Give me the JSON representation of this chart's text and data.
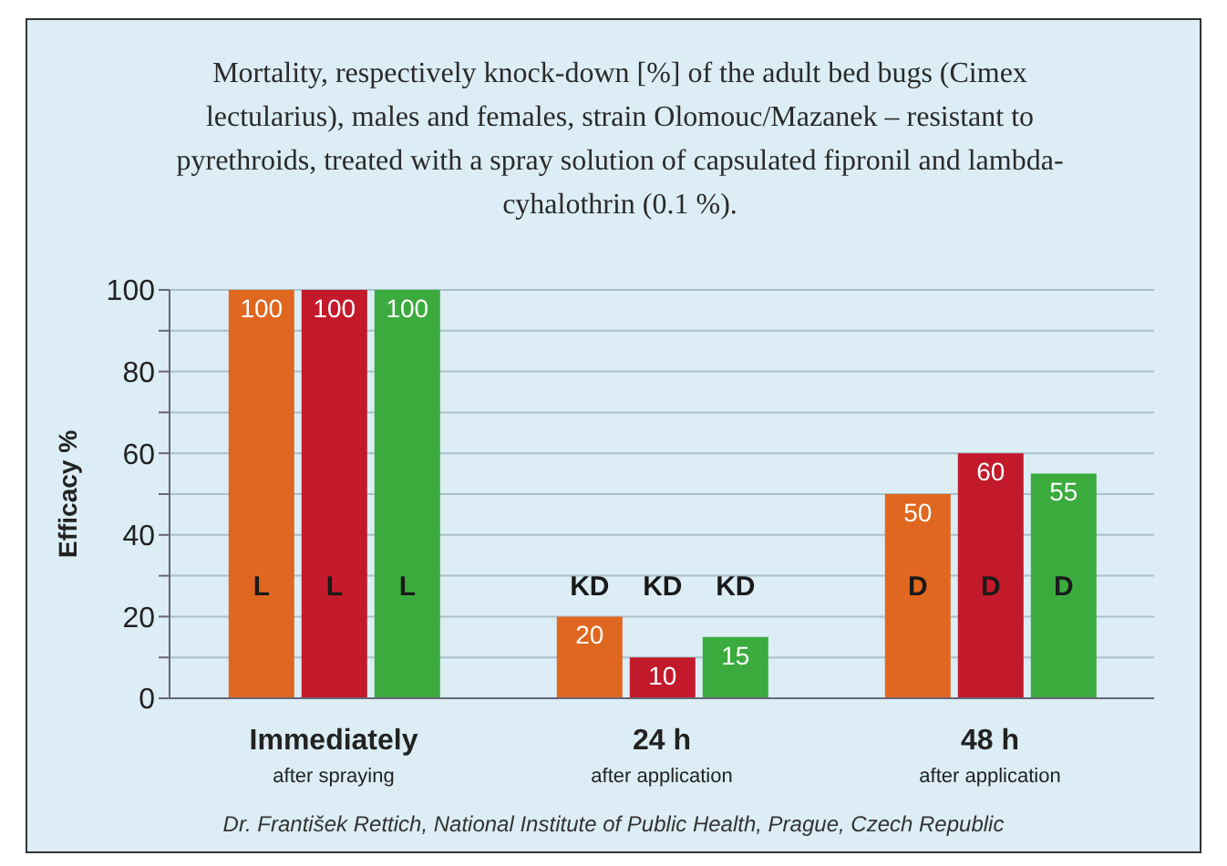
{
  "chart_data": {
    "type": "bar",
    "title": "Mortality, respectively knock-down [%] of the adult bed bugs (Cimex lectularius), males and females, strain Olomouc/Mazanek – resistant to pyrethroids, treated with a spray solution of capsulated fipronil and lambda-cyhalothrin (0.1 %).",
    "ylabel": "Efficacy %",
    "categories": [
      "Immediately\nafter spraying",
      "24 h\nafter application",
      "48 h\nafter application"
    ],
    "series": [
      {
        "color": "#e0671f",
        "values": [
          100,
          20,
          50
        ]
      },
      {
        "color": "#c21a2b",
        "values": [
          100,
          10,
          60
        ]
      },
      {
        "color": "#3cab3e",
        "values": [
          100,
          15,
          55
        ]
      }
    ],
    "data_labels": true,
    "ylim": [
      0,
      100
    ],
    "yticks": [
      0,
      {
        "value": 10,
        "label": null
      },
      20,
      {
        "value": 30,
        "label": null
      },
      40,
      {
        "value": 50,
        "label": null
      },
      60,
      {
        "value": 70,
        "label": null
      },
      80,
      {
        "value": 90,
        "label": null
      },
      100
    ],
    "grid": "y",
    "annotations": [
      "L",
      "L",
      "L",
      "KD",
      "KD",
      "KD",
      "D",
      "D",
      "D",
      "Dr. František Rettich, National Institute of Public Health, Prague, Czech Republic"
    ]
  }
}
